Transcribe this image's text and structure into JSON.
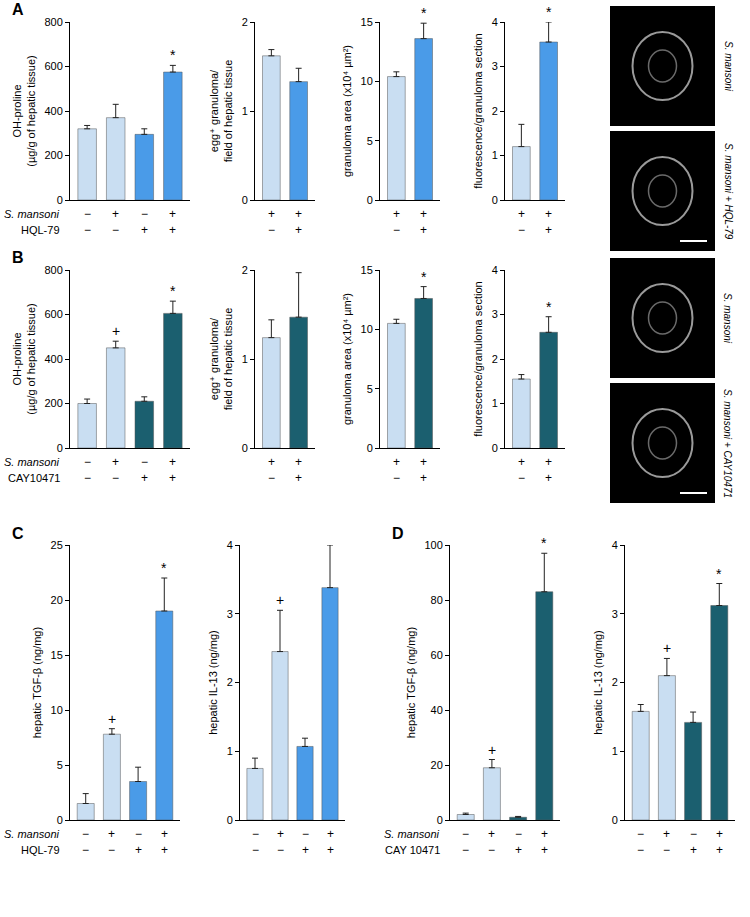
{
  "chart_data": [
    {
      "panel": "A",
      "type": "bar",
      "y_label": "OH-proline (µg/g of hepatic tissue)",
      "categories": [
        null,
        null,
        null,
        null
      ],
      "values": [
        320,
        370,
        295,
        575
      ],
      "errors": [
        15,
        60,
        25,
        30
      ],
      "colors": [
        "#c9def2",
        "#c9def2",
        "#4a9be8",
        "#4a9be8"
      ],
      "significance": [
        null,
        null,
        null,
        "*"
      ],
      "conditions": [
        {
          "label": "S. mansoni",
          "signs": [
            "−",
            "+",
            "−",
            "+"
          ]
        },
        {
          "label": "HQL-79",
          "signs": [
            "−",
            "−",
            "+",
            "+"
          ]
        }
      ],
      "ylim": [
        0,
        800
      ],
      "yticks": [
        0,
        200,
        400,
        600,
        800
      ],
      "tick_labels": "y"
    },
    {
      "type": "bar",
      "y_label": "egg⁺ granuloma/ field of hepatic tissue",
      "categories": [
        null,
        null
      ],
      "values": [
        1.62,
        1.33
      ],
      "errors": [
        0.07,
        0.15
      ],
      "colors": [
        "#c9def2",
        "#4a9be8"
      ],
      "significance": [
        null,
        null
      ],
      "conditions": [
        {
          "signs": [
            "+",
            "+"
          ]
        },
        {
          "signs": [
            "−",
            "+"
          ]
        }
      ],
      "ylim": [
        0,
        2
      ],
      "yticks": [
        0,
        1,
        2
      ],
      "tick_labels": "y"
    },
    {
      "type": "bar",
      "y_label": "granuloma area (x10⁴ µm²)",
      "categories": [
        null,
        null
      ],
      "values": [
        10.4,
        13.6
      ],
      "errors": [
        0.4,
        1.3
      ],
      "colors": [
        "#c9def2",
        "#4a9be8"
      ],
      "significance": [
        null,
        "*"
      ],
      "conditions": [
        {
          "signs": [
            "+",
            "+"
          ]
        },
        {
          "signs": [
            "−",
            "+"
          ]
        }
      ],
      "ylim": [
        0,
        15
      ],
      "yticks": [
        0,
        5,
        10,
        15
      ],
      "tick_labels": "y"
    },
    {
      "type": "bar",
      "y_label": "fluorescence/granuloma section",
      "categories": [
        null,
        null
      ],
      "values": [
        1.2,
        3.55
      ],
      "errors": [
        0.5,
        0.45
      ],
      "colors": [
        "#c9def2",
        "#4a9be8"
      ],
      "significance": [
        null,
        "*"
      ],
      "conditions": [
        {
          "signs": [
            "+",
            "+"
          ]
        },
        {
          "signs": [
            "−",
            "+"
          ]
        }
      ],
      "ylim": [
        0,
        4
      ],
      "yticks": [
        0,
        1,
        2,
        3,
        4
      ],
      "tick_labels": "y"
    },
    {
      "panel": "B",
      "type": "bar",
      "y_label": "OH-proline (µg/g of hepatic tissue)",
      "categories": [
        null,
        null,
        null,
        null
      ],
      "values": [
        200,
        450,
        210,
        605
      ],
      "errors": [
        20,
        30,
        20,
        55
      ],
      "colors": [
        "#c9def2",
        "#c9def2",
        "#1b5f6f",
        "#1b5f6f"
      ],
      "significance": [
        null,
        "+",
        null,
        "*"
      ],
      "conditions": [
        {
          "label": "S. mansoni",
          "signs": [
            "−",
            "+",
            "−",
            "+"
          ]
        },
        {
          "label": "CAY10471",
          "signs": [
            "−",
            "−",
            "+",
            "+"
          ]
        }
      ],
      "ylim": [
        0,
        800
      ],
      "yticks": [
        0,
        200,
        400,
        600,
        800
      ],
      "tick_labels": "y"
    },
    {
      "type": "bar",
      "y_label": "egg⁺ granuloma/ field of hepatic tissue",
      "categories": [
        null,
        null
      ],
      "values": [
        1.24,
        1.47
      ],
      "errors": [
        0.2,
        0.5
      ],
      "colors": [
        "#c9def2",
        "#1b5f6f"
      ],
      "significance": [
        null,
        null
      ],
      "conditions": [
        {
          "signs": [
            "+",
            "+"
          ]
        },
        {
          "signs": [
            "−",
            "+"
          ]
        }
      ],
      "ylim": [
        0,
        2
      ],
      "yticks": [
        0,
        1,
        2
      ],
      "tick_labels": "y"
    },
    {
      "type": "bar",
      "y_label": "granuloma area (x10⁴ µm²)",
      "categories": [
        null,
        null
      ],
      "values": [
        10.5,
        12.6
      ],
      "errors": [
        0.35,
        1.0
      ],
      "colors": [
        "#c9def2",
        "#1b5f6f"
      ],
      "significance": [
        null,
        "*"
      ],
      "conditions": [
        {
          "signs": [
            "+",
            "+"
          ]
        },
        {
          "signs": [
            "−",
            "+"
          ]
        }
      ],
      "ylim": [
        0,
        15
      ],
      "yticks": [
        0,
        5,
        10,
        15
      ],
      "tick_labels": "y"
    },
    {
      "type": "bar",
      "y_label": "fluorescence/granuloma section",
      "categories": [
        null,
        null
      ],
      "values": [
        1.55,
        2.6
      ],
      "errors": [
        0.1,
        0.35
      ],
      "colors": [
        "#c9def2",
        "#1b5f6f"
      ],
      "significance": [
        null,
        "*"
      ],
      "conditions": [
        {
          "signs": [
            "+",
            "+"
          ]
        },
        {
          "signs": [
            "−",
            "+"
          ]
        }
      ],
      "ylim": [
        0,
        4
      ],
      "yticks": [
        0,
        1,
        2,
        3,
        4
      ],
      "tick_labels": "y"
    },
    {
      "panel": "C",
      "type": "bar",
      "y_label": "hepatic TGF-β (ng/mg)",
      "categories": [
        null,
        null,
        null,
        null
      ],
      "values": [
        1.5,
        7.8,
        3.5,
        19
      ],
      "errors": [
        0.9,
        0.5,
        1.3,
        3
      ],
      "colors": [
        "#c9def2",
        "#c9def2",
        "#4a9be8",
        "#4a9be8"
      ],
      "significance": [
        null,
        "+",
        null,
        "*"
      ],
      "conditions": [
        {
          "label": "S. mansoni",
          "signs": [
            "−",
            "+",
            "−",
            "+"
          ]
        },
        {
          "label": "HQL-79",
          "signs": [
            "−",
            "−",
            "+",
            "+"
          ]
        }
      ],
      "ylim": [
        0,
        25
      ],
      "yticks": [
        0,
        5,
        10,
        15,
        20,
        25
      ],
      "tick_labels": "y"
    },
    {
      "type": "bar",
      "y_label": "hepatic IL-13 (ng/mg)",
      "categories": [
        null,
        null,
        null,
        null
      ],
      "values": [
        0.75,
        2.45,
        1.07,
        3.38
      ],
      "errors": [
        0.15,
        0.6,
        0.12,
        0.62
      ],
      "colors": [
        "#c9def2",
        "#c9def2",
        "#4a9be8",
        "#4a9be8"
      ],
      "significance": [
        null,
        "+",
        null,
        null
      ],
      "conditions": [
        {
          "signs": [
            "−",
            "+",
            "−",
            "+"
          ]
        },
        {
          "signs": [
            "−",
            "−",
            "+",
            "+"
          ]
        }
      ],
      "ylim": [
        0,
        4
      ],
      "yticks": [
        0,
        1,
        2,
        3,
        4
      ],
      "tick_labels": "y"
    },
    {
      "panel": "D",
      "type": "bar",
      "y_label": "hepatic TGF-β (ng/mg)",
      "categories": [
        null,
        null,
        null,
        null
      ],
      "values": [
        2,
        19,
        1,
        83
      ],
      "errors": [
        0.5,
        3,
        0.3,
        14
      ],
      "colors": [
        "#c9def2",
        "#c9def2",
        "#1b5f6f",
        "#1b5f6f"
      ],
      "significance": [
        null,
        "+",
        null,
        "*"
      ],
      "conditions": [
        {
          "label": "S. mansoni",
          "signs": [
            "−",
            "+",
            "−",
            "+"
          ]
        },
        {
          "label": "CAY 10471",
          "signs": [
            "−",
            "−",
            "+",
            "+"
          ]
        }
      ],
      "ylim": [
        0,
        100
      ],
      "yticks": [
        0,
        20,
        40,
        60,
        80,
        100
      ],
      "tick_labels": "y"
    },
    {
      "type": "bar",
      "y_label": "hepatic IL-13 (ng/mg)",
      "categories": [
        null,
        null,
        null,
        null
      ],
      "values": [
        1.58,
        2.1,
        1.42,
        3.12
      ],
      "errors": [
        0.1,
        0.25,
        0.15,
        0.32
      ],
      "colors": [
        "#c9def2",
        "#c9def2",
        "#1b5f6f",
        "#1b5f6f"
      ],
      "significance": [
        null,
        "+",
        null,
        "*"
      ],
      "conditions": [
        {
          "signs": [
            "−",
            "+",
            "−",
            "+"
          ]
        },
        {
          "signs": [
            "−",
            "−",
            "+",
            "+"
          ]
        }
      ],
      "ylim": [
        0,
        4
      ],
      "yticks": [
        0,
        1,
        2,
        3,
        4
      ],
      "tick_labels": "y"
    }
  ],
  "micrographs": [
    {
      "panel": "A",
      "labels": [
        "S. mansoni",
        "S. mansoni + HQL-79"
      ]
    },
    {
      "panel": "B",
      "labels": [
        "S. mansoni",
        "S. mansoni + CAY10471"
      ]
    }
  ]
}
